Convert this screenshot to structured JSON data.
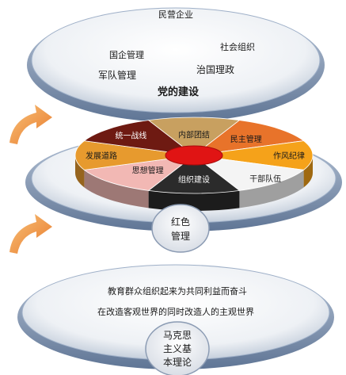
{
  "top_plate": {
    "title": "民营企业",
    "items": [
      "国企管理",
      "社会组织",
      "军队管理",
      "治国理政",
      "党的建设"
    ]
  },
  "pie": {
    "center_label": "",
    "sectors": [
      {
        "label": "内部团结",
        "color": "#c8a060"
      },
      {
        "label": "民主管理",
        "color": "#e8732a"
      },
      {
        "label": "作风纪律",
        "color": "#f5a21a"
      },
      {
        "label": "干部队伍",
        "color": "#f4f4f4"
      },
      {
        "label": "组织建设",
        "color": "#2b2b2b"
      },
      {
        "label": "思想管理",
        "color": "#f2b8b4"
      },
      {
        "label": "发展道路",
        "color": "#e79a2e"
      },
      {
        "label": "统一战线",
        "color": "#6e1a12"
      }
    ]
  },
  "middle_badge": {
    "line1": "红色",
    "line2": "管理"
  },
  "bottom_plate": {
    "line1": "教育群众组织起来为共同利益而奋斗",
    "line2": "在改造客观世界的同时改造人的主观世界",
    "badge": [
      "马克思",
      "主义基",
      "本理论"
    ]
  },
  "colors": {
    "plate_edge": "#8fa5c4",
    "plate_fill": "#f7f8fa",
    "arrow": "#f29a3d"
  }
}
